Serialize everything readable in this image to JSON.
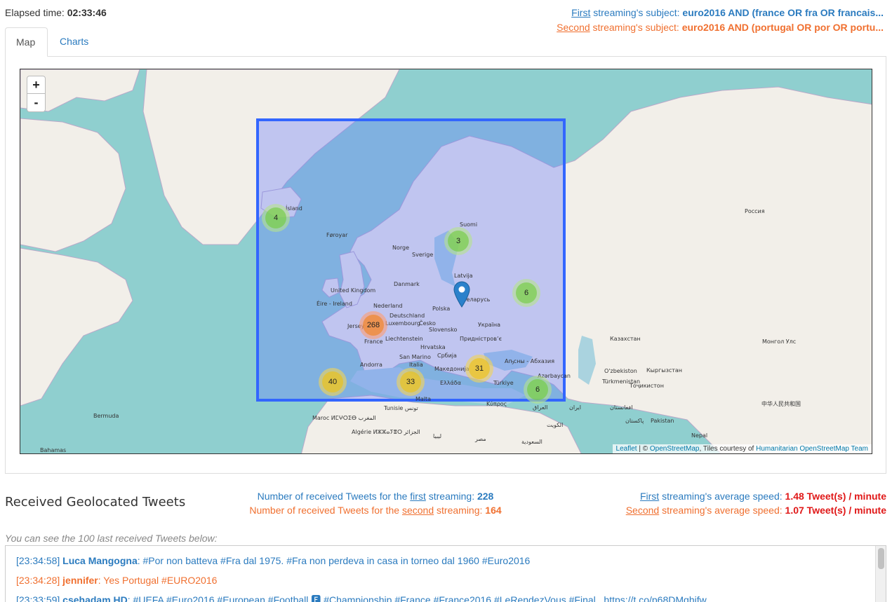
{
  "header": {
    "elapsed_label": "Elapsed time:",
    "elapsed_value": "02:33:46",
    "subject1": {
      "ord": "First",
      "rest": "streaming's subject:",
      "query": "euro2016 AND (france OR fra OR francais..."
    },
    "subject2": {
      "ord": "Second",
      "rest": "streaming's subject:",
      "query": "euro2016 AND (portugal OR por OR portu..."
    }
  },
  "tabs": [
    {
      "label": "Map"
    },
    {
      "label": "Charts"
    }
  ],
  "map": {
    "zoom_in": "+",
    "zoom_out": "-",
    "clusters": [
      {
        "count": "4",
        "level": "green"
      },
      {
        "count": "3",
        "level": "green"
      },
      {
        "count": "6",
        "level": "green"
      },
      {
        "count": "268",
        "level": "orange"
      },
      {
        "count": "31",
        "level": "yellow"
      },
      {
        "count": "40",
        "level": "yellow"
      },
      {
        "count": "33",
        "level": "yellow"
      },
      {
        "count": "6",
        "level": "green"
      }
    ],
    "labels": [
      "Ísland",
      "Føroyar",
      "Norge",
      "Sverige",
      "Suomi",
      "Latvija",
      "Danmark",
      "United Kingdom",
      "Éire - Ireland",
      "Nederland",
      "Deutschland",
      "Polska",
      "Беларусь",
      "Česko",
      "Україна",
      "France",
      "Liechtenstein",
      "Slovensko",
      "Hrvatska",
      "Придністровʼє",
      "Andorra",
      "San Marino",
      "Italia",
      "Србија",
      "Македонија",
      "Ελλάδα",
      "Türkiye",
      "Malta",
      "Tunisie تونس",
      "Algérie ⵍⵣⵣⴰⵢⴻⵔ الجزائر",
      "Maroc ⵍⵎⵖⵔⵉⴱ المغرب",
      "ليبيا",
      "مصر",
      "السعودية",
      "الكويت",
      "ایران",
      "العراق",
      "Κύπρος",
      "Россия",
      "Казахстан",
      "Монгол Улс",
      "O'zbekiston",
      "Кыргызстан",
      "Türkmenistan",
      "Тоҷикистон",
      "افغانستان",
      "پاکستان",
      "Pakistan",
      "Nepal",
      "中华人民共和国",
      "Bermuda",
      "Bahamas",
      "Аҧсны - Абхазия",
      "Azərbaycan",
      "Luxembourg",
      "Jersey"
    ],
    "attribution": {
      "leaflet": "Leaflet",
      "sep": " | © ",
      "osm": "OpenStreetMap",
      "tiles": ", Tiles courtesy of ",
      "hot": "Humanitarian OpenStreetMap Team"
    }
  },
  "stats": {
    "title": "Received Geolocated Tweets",
    "count1": {
      "pre": "Number of received Tweets for the",
      "ord": "first",
      "post": "streaming:",
      "value": "228"
    },
    "count2": {
      "pre": "Number of received Tweets for the",
      "ord": "second",
      "post": "streaming:",
      "value": "164"
    },
    "speed1": {
      "ord": "First",
      "post": "streaming's average speed:",
      "value": "1.48 Tweet(s) / minute"
    },
    "speed2": {
      "ord": "Second",
      "post": "streaming's average speed:",
      "value": "1.07 Tweet(s) / minute"
    },
    "hint": "You can see the 100 last received Tweets below:"
  },
  "tweets": [
    {
      "time": "[23:34:58]",
      "user": "Luca Mangogna",
      "text": ": #Por non batteva #Fra dal 1975. #Fra non perdeva in casa in torneo dal 1960 #Euro2016",
      "stream": "first"
    },
    {
      "time": "[23:34:28]",
      "user": "jennifer",
      "text": ": Yes Portugal #EURO2016",
      "stream": "second"
    },
    {
      "time": "[23:33:59]",
      "user": "csehadam HD",
      "text": ": #UEFA #Euro2016 #European #Football 🅵 #Championship #France #France2016 #LeRendezVous #Final.. https://t.co/p68DMqhifw",
      "stream": "first"
    }
  ],
  "colors": {
    "first": "#2b7bbf",
    "second": "#f07030",
    "speed": "#e01818"
  }
}
